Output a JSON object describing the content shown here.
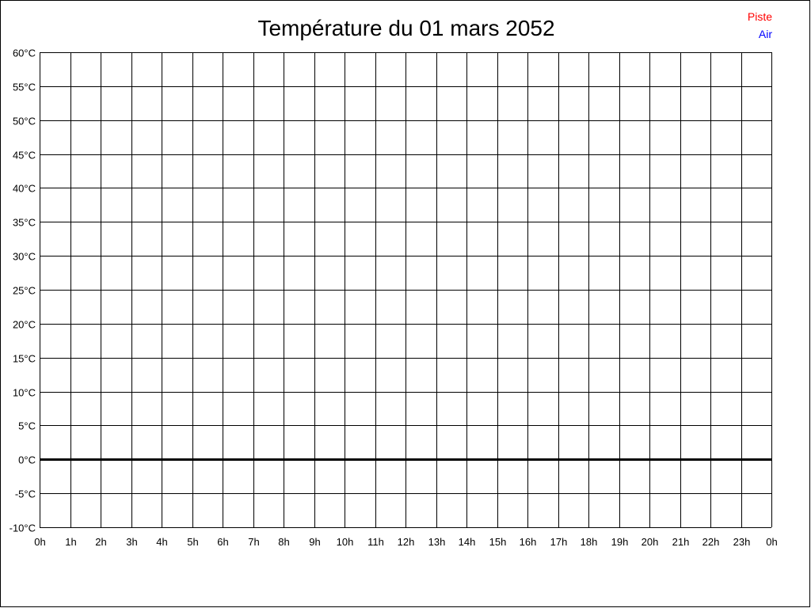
{
  "chart_data": {
    "type": "line",
    "title": "Température du 01 mars 2052",
    "xlabel": "",
    "ylabel": "",
    "y_unit": "°C",
    "ylim": [
      -10,
      60
    ],
    "y_ticks": [
      60,
      55,
      50,
      45,
      40,
      35,
      30,
      25,
      20,
      15,
      10,
      5,
      0,
      -5,
      -10
    ],
    "y_tick_labels": [
      "60°C",
      "55°C",
      "50°C",
      "45°C",
      "40°C",
      "35°C",
      "30°C",
      "25°C",
      "20°C",
      "15°C",
      "10°C",
      "5°C",
      "0°C",
      "-5°C",
      "-10°C"
    ],
    "x_tick_labels": [
      "0h",
      "1h",
      "2h",
      "3h",
      "4h",
      "5h",
      "6h",
      "7h",
      "8h",
      "9h",
      "10h",
      "11h",
      "12h",
      "13h",
      "14h",
      "15h",
      "16h",
      "17h",
      "18h",
      "19h",
      "20h",
      "21h",
      "22h",
      "23h",
      "0h"
    ],
    "grid": true,
    "legend_position": "top-right",
    "series": [
      {
        "name": "Piste",
        "color": "#ff0000",
        "values": []
      },
      {
        "name": "Air",
        "color": "#0000ff",
        "values": []
      }
    ]
  }
}
